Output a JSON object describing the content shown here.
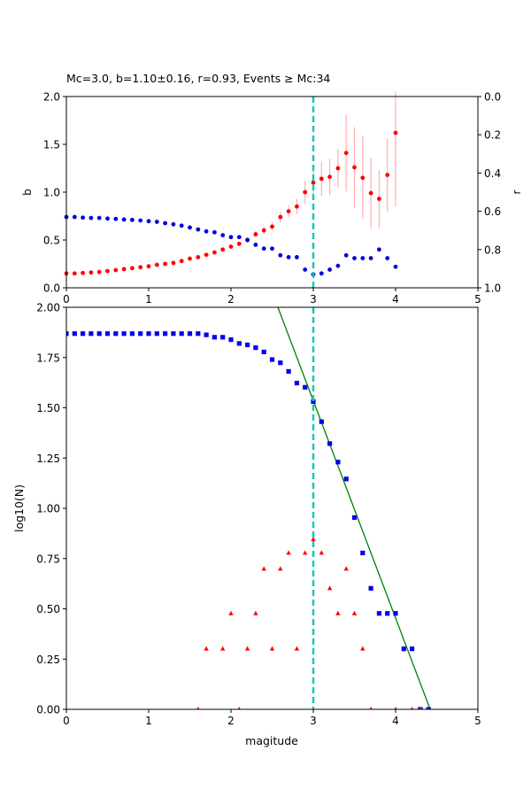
{
  "chart_data": [
    {
      "type": "scatter",
      "title": "Mc=3.0, b=1.10±0.16, r=0.93, Events ≥ Mc:34",
      "xlabel": "",
      "ylabel": "b",
      "ylabel_right": "r",
      "xlim": [
        0,
        5
      ],
      "ylim": [
        0,
        2
      ],
      "ylim_right": [
        1,
        0
      ],
      "x_ticks": [
        "0",
        "1",
        "2",
        "3",
        "4",
        "5"
      ],
      "y_ticks": [
        "0.0",
        "0.5",
        "1.0",
        "1.5",
        "2.0"
      ],
      "y_ticks_right": [
        "0.0",
        "0.2",
        "0.4",
        "0.6",
        "0.8",
        "1.0"
      ],
      "grid": false,
      "vline_x": 3.0,
      "series": [
        {
          "axis": "left",
          "color": "#ff0000",
          "error_color": "#ffb0b0",
          "points": [
            [
              0.0,
              0.15
            ],
            [
              0.1,
              0.15
            ],
            [
              0.2,
              0.155
            ],
            [
              0.3,
              0.16
            ],
            [
              0.4,
              0.165
            ],
            [
              0.5,
              0.175
            ],
            [
              0.6,
              0.185
            ],
            [
              0.7,
              0.195
            ],
            [
              0.8,
              0.205
            ],
            [
              0.9,
              0.215
            ],
            [
              1.0,
              0.225
            ],
            [
              1.1,
              0.24
            ],
            [
              1.2,
              0.25
            ],
            [
              1.3,
              0.26
            ],
            [
              1.4,
              0.28
            ],
            [
              1.5,
              0.305
            ],
            [
              1.6,
              0.32
            ],
            [
              1.7,
              0.345
            ],
            [
              1.8,
              0.37
            ],
            [
              1.9,
              0.4
            ],
            [
              2.0,
              0.43
            ],
            [
              2.1,
              0.46
            ],
            [
              2.2,
              0.5
            ],
            [
              2.3,
              0.56
            ],
            [
              2.4,
              0.6
            ],
            [
              2.5,
              0.64
            ],
            [
              2.6,
              0.74
            ],
            [
              2.7,
              0.8
            ],
            [
              2.8,
              0.85
            ],
            [
              2.9,
              1.0
            ],
            [
              3.0,
              1.1
            ],
            [
              3.1,
              1.14
            ],
            [
              3.2,
              1.16
            ],
            [
              3.3,
              1.25
            ],
            [
              3.4,
              1.41
            ],
            [
              3.5,
              1.26
            ],
            [
              3.6,
              1.15
            ],
            [
              3.7,
              0.99
            ],
            [
              3.8,
              0.93
            ],
            [
              3.9,
              1.18
            ],
            [
              4.0,
              1.62
            ]
          ],
          "errors": [
            0.005,
            0.005,
            0.005,
            0.005,
            0.005,
            0.006,
            0.007,
            0.008,
            0.008,
            0.009,
            0.01,
            0.01,
            0.011,
            0.012,
            0.013,
            0.015,
            0.016,
            0.018,
            0.02,
            0.022,
            0.025,
            0.028,
            0.032,
            0.036,
            0.04,
            0.045,
            0.055,
            0.065,
            0.08,
            0.12,
            0.16,
            0.18,
            0.19,
            0.2,
            0.4,
            0.42,
            0.43,
            0.37,
            0.3,
            0.38,
            0.77
          ]
        },
        {
          "axis": "right",
          "color": "#0000dd",
          "points": [
            [
              0.0,
              0.63
            ],
            [
              0.1,
              0.63
            ],
            [
              0.2,
              0.633
            ],
            [
              0.3,
              0.635
            ],
            [
              0.4,
              0.635
            ],
            [
              0.5,
              0.638
            ],
            [
              0.6,
              0.64
            ],
            [
              0.7,
              0.643
            ],
            [
              0.8,
              0.645
            ],
            [
              0.9,
              0.648
            ],
            [
              1.0,
              0.652
            ],
            [
              1.1,
              0.655
            ],
            [
              1.2,
              0.662
            ],
            [
              1.3,
              0.668
            ],
            [
              1.4,
              0.675
            ],
            [
              1.5,
              0.685
            ],
            [
              1.6,
              0.695
            ],
            [
              1.7,
              0.705
            ],
            [
              1.8,
              0.71
            ],
            [
              1.9,
              0.725
            ],
            [
              2.0,
              0.735
            ],
            [
              2.1,
              0.735
            ],
            [
              2.2,
              0.75
            ],
            [
              2.3,
              0.775
            ],
            [
              2.4,
              0.795
            ],
            [
              2.5,
              0.795
            ],
            [
              2.6,
              0.83
            ],
            [
              2.7,
              0.84
            ],
            [
              2.8,
              0.84
            ],
            [
              2.9,
              0.905
            ],
            [
              3.0,
              0.93
            ],
            [
              3.1,
              0.925
            ],
            [
              3.2,
              0.905
            ],
            [
              3.3,
              0.885
            ],
            [
              3.4,
              0.83
            ],
            [
              3.5,
              0.845
            ],
            [
              3.6,
              0.845
            ],
            [
              3.7,
              0.845
            ],
            [
              3.8,
              0.8
            ],
            [
              3.9,
              0.845
            ],
            [
              4.0,
              0.89
            ]
          ]
        }
      ]
    },
    {
      "type": "scatter",
      "title": "",
      "xlabel": "magitude",
      "ylabel": "log10(N)",
      "xlim": [
        0,
        5
      ],
      "ylim": [
        0,
        2
      ],
      "x_ticks": [
        "0",
        "1",
        "2",
        "3",
        "4",
        "5"
      ],
      "y_ticks": [
        "0.00",
        "0.25",
        "0.50",
        "0.75",
        "1.00",
        "1.25",
        "1.50",
        "1.75",
        "2.00"
      ],
      "grid": false,
      "vline_x": 3.0,
      "fit_line": {
        "color": "#008000",
        "x": [
          2.57,
          4.42
        ],
        "y": [
          2.0,
          0.0
        ]
      },
      "series": [
        {
          "marker": "square",
          "color": "#0000ee",
          "points": [
            [
              0.0,
              1.869
            ],
            [
              0.1,
              1.869
            ],
            [
              0.2,
              1.869
            ],
            [
              0.3,
              1.869
            ],
            [
              0.4,
              1.869
            ],
            [
              0.5,
              1.869
            ],
            [
              0.6,
              1.869
            ],
            [
              0.7,
              1.869
            ],
            [
              0.8,
              1.869
            ],
            [
              0.9,
              1.869
            ],
            [
              1.0,
              1.869
            ],
            [
              1.1,
              1.869
            ],
            [
              1.2,
              1.869
            ],
            [
              1.3,
              1.869
            ],
            [
              1.4,
              1.869
            ],
            [
              1.5,
              1.869
            ],
            [
              1.6,
              1.869
            ],
            [
              1.7,
              1.863
            ],
            [
              1.8,
              1.851
            ],
            [
              1.9,
              1.851
            ],
            [
              2.0,
              1.839
            ],
            [
              2.1,
              1.82
            ],
            [
              2.2,
              1.813
            ],
            [
              2.3,
              1.799
            ],
            [
              2.4,
              1.778
            ],
            [
              2.5,
              1.74
            ],
            [
              2.6,
              1.724
            ],
            [
              2.7,
              1.681
            ],
            [
              2.8,
              1.623
            ],
            [
              2.9,
              1.602
            ],
            [
              3.0,
              1.531
            ],
            [
              3.1,
              1.431
            ],
            [
              3.2,
              1.322
            ],
            [
              3.3,
              1.23
            ],
            [
              3.4,
              1.146
            ],
            [
              3.5,
              0.954
            ],
            [
              3.6,
              0.778
            ],
            [
              3.7,
              0.602
            ],
            [
              3.8,
              0.477
            ],
            [
              3.9,
              0.477
            ],
            [
              4.0,
              0.477
            ],
            [
              4.1,
              0.301
            ],
            [
              4.2,
              0.301
            ],
            [
              4.3,
              0.0
            ],
            [
              4.4,
              0.0
            ]
          ]
        },
        {
          "marker": "triangle",
          "color": "#ff0000",
          "points": [
            [
              1.6,
              0.0
            ],
            [
              1.7,
              0.301
            ],
            [
              1.9,
              0.301
            ],
            [
              2.0,
              0.477
            ],
            [
              2.1,
              0.0
            ],
            [
              2.2,
              0.301
            ],
            [
              2.3,
              0.477
            ],
            [
              2.4,
              0.699
            ],
            [
              2.5,
              0.301
            ],
            [
              2.6,
              0.699
            ],
            [
              2.7,
              0.778
            ],
            [
              2.8,
              0.301
            ],
            [
              2.9,
              0.778
            ],
            [
              3.0,
              0.845
            ],
            [
              3.1,
              0.778
            ],
            [
              3.2,
              0.602
            ],
            [
              3.3,
              0.477
            ],
            [
              3.4,
              0.699
            ],
            [
              3.5,
              0.477
            ],
            [
              3.6,
              0.301
            ],
            [
              3.7,
              0.0
            ],
            [
              4.0,
              0.0
            ],
            [
              4.2,
              0.0
            ],
            [
              4.3,
              0.0
            ]
          ]
        }
      ]
    }
  ]
}
